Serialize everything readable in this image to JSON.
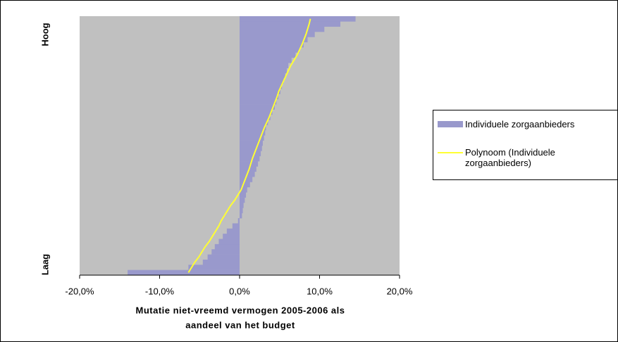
{
  "chart_data": {
    "type": "bar",
    "orientation": "horizontal",
    "xlabel": [
      "Mutatie niet-vreemd vermogen 2005-2006 als",
      "aandeel van het budget"
    ],
    "y_end_labels": [
      "Laag",
      "Hoog"
    ],
    "categories": [
      null,
      null,
      null,
      null,
      null,
      null,
      null,
      null,
      null,
      null,
      null,
      null,
      null,
      null,
      null,
      null,
      null,
      null,
      null,
      null,
      null,
      null,
      null,
      null,
      null,
      null,
      null,
      null,
      null,
      null,
      null,
      null,
      null,
      null,
      null,
      null,
      null,
      null,
      null,
      null,
      null,
      null,
      null,
      null,
      null,
      null,
      null,
      null,
      null,
      null
    ],
    "series": [
      {
        "name": "Individuele zorgaanbieders",
        "color": "#9999cc",
        "values": [
          -14,
          -6.4,
          -4.6,
          -4.0,
          -3.5,
          -3.1,
          -2.6,
          -2.1,
          -1.6,
          -0.9,
          -0.2,
          0.3,
          0.4,
          0.5,
          0.65,
          0.8,
          0.95,
          1.3,
          1.6,
          1.9,
          2.1,
          2.3,
          2.5,
          2.65,
          2.8,
          2.9,
          3.05,
          3.2,
          3.3,
          3.55,
          3.85,
          4.1,
          4.4,
          4.6,
          4.85,
          5.1,
          5.3,
          5.5,
          5.7,
          5.9,
          6.1,
          6.5,
          7.0,
          7.5,
          8.0,
          8.5,
          9.4,
          10.6,
          12.6,
          14.5
        ]
      },
      {
        "name": "Polynoom (Individuele zorgaanbieders)",
        "color": "#ffff33",
        "type": "line",
        "values": [
          -6.4,
          -6.0,
          -5.6,
          -5.1,
          -4.7,
          -4.3,
          -3.8,
          -3.4,
          -3.0,
          -2.6,
          -2.3,
          -1.9,
          -1.5,
          -1.1,
          -0.6,
          -0.2,
          0.2,
          0.45,
          0.7,
          0.95,
          1.2,
          1.4,
          1.6,
          1.85,
          2.1,
          2.35,
          2.6,
          2.85,
          3.1,
          3.4,
          3.7,
          3.95,
          4.2,
          4.45,
          4.7,
          4.9,
          5.2,
          5.5,
          5.8,
          6.1,
          6.4,
          6.8,
          7.2,
          7.5,
          7.8,
          8.05,
          8.3,
          8.5,
          8.7,
          8.85
        ]
      }
    ],
    "xlim": [
      -20,
      20
    ],
    "xticks": [
      {
        "value": -20,
        "label": "-20,0%"
      },
      {
        "value": -10,
        "label": "-10,0%"
      },
      {
        "value": 0,
        "label": "0,0%"
      },
      {
        "value": 10,
        "label": "10,0%"
      },
      {
        "value": 20,
        "label": "20,0%"
      }
    ],
    "plot_background": "#c0c0c0",
    "grid": false
  }
}
